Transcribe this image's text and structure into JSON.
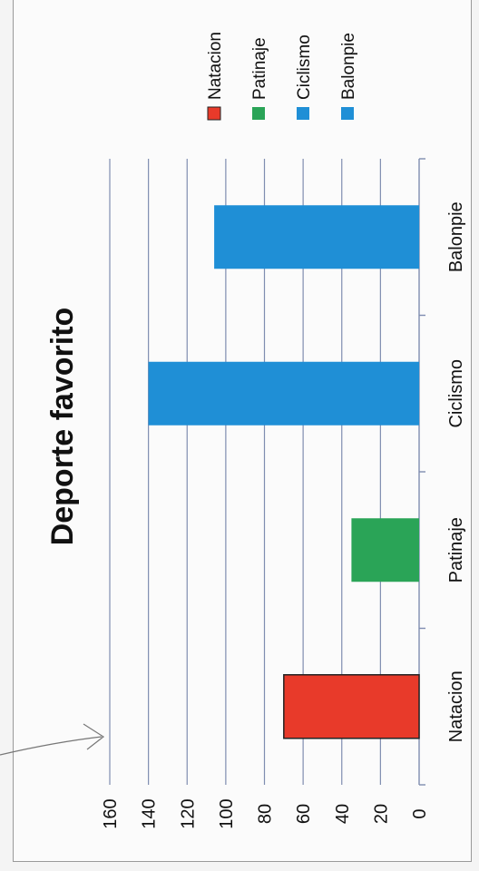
{
  "chart_data": {
    "type": "bar",
    "title": "Deporte favorito",
    "categories": [
      "Natacion",
      "Patinaje",
      "Ciclismo",
      "Balonpie"
    ],
    "values": [
      70,
      35,
      140,
      106
    ],
    "colors": [
      "#e83a2a",
      "#2aa457",
      "#1f8fd6",
      "#1f8fd6"
    ],
    "legend": [
      "Natacion",
      "Patinaje",
      "Ciclismo",
      "Balonpie"
    ],
    "legend_position": "top-right",
    "ylim": [
      0,
      160
    ],
    "yticks": [
      "0",
      "20",
      "40",
      "60",
      "80",
      "100",
      "120",
      "140",
      "160"
    ],
    "grid": true,
    "xlabel": "",
    "ylabel": "",
    "orientation": "rotated-90"
  }
}
